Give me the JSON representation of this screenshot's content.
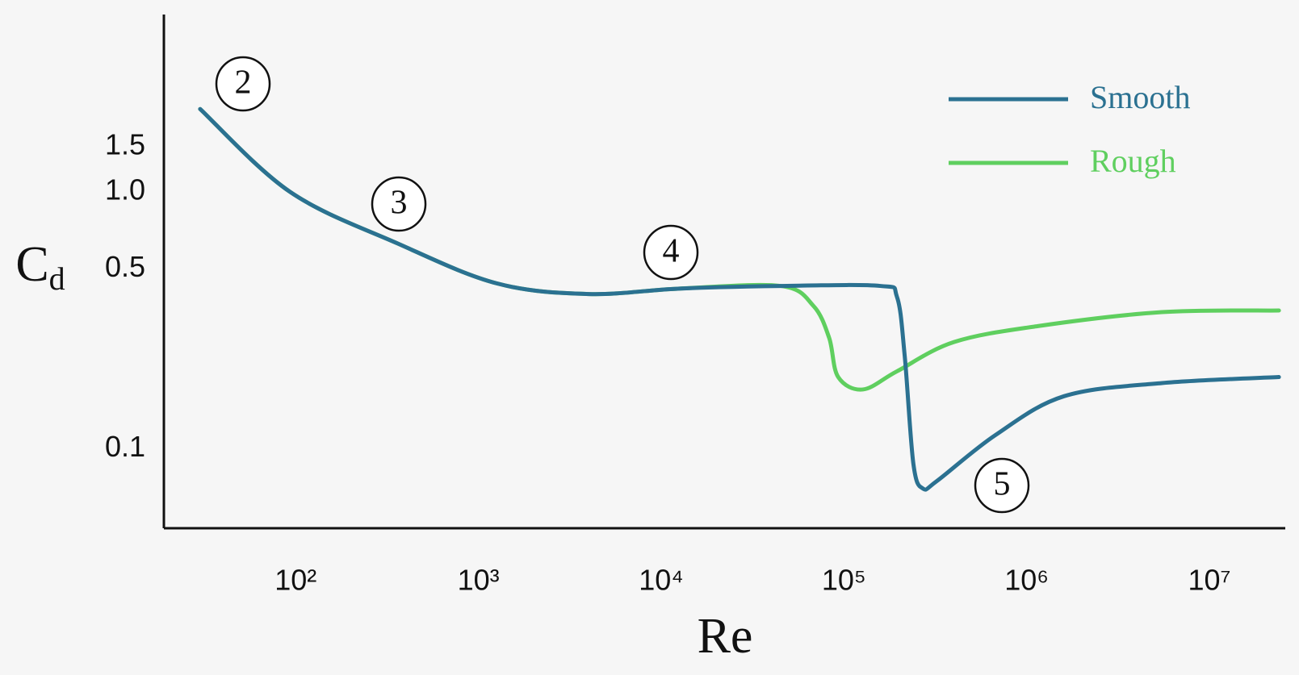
{
  "chart_data": {
    "type": "line",
    "xlabel": "Re",
    "ylabel": "Cd",
    "xscale": "log",
    "yscale": "log",
    "grid": false,
    "legend": "upper right",
    "xlim": [
      19,
      26000000
    ],
    "ylim": [
      0.049,
      4.9
    ],
    "xticks": [
      {
        "value": 100,
        "label": "10²"
      },
      {
        "value": 1000,
        "label": "10³"
      },
      {
        "value": 10000,
        "label": "10⁴"
      },
      {
        "value": 100000,
        "label": "10⁵"
      },
      {
        "value": 1000000,
        "label": "10⁶"
      },
      {
        "value": 10000000,
        "label": "10⁷"
      }
    ],
    "yticks": [
      1.5,
      {
        "value": 1,
        "label": "1.0"
      },
      0.5,
      0.1
    ],
    "annotations": [
      "2",
      "3",
      "4",
      "5"
    ],
    "series": [
      {
        "name": "Smooth",
        "color": "#2b7191",
        "x": [
          30,
          93,
          360,
          1260,
          4000,
          12600,
          45000,
          158000,
          195000,
          215000,
          240000,
          270000,
          324000,
          675000,
          1600000,
          5500000,
          24000000
        ],
        "values": [
          2.1,
          1.0,
          0.63,
          0.44,
          0.4,
          0.42,
          0.43,
          0.43,
          0.39,
          0.23,
          0.087,
          0.07,
          0.075,
          0.113,
          0.16,
          0.18,
          0.19
        ]
      },
      {
        "name": "Rough",
        "color": "#5fcf5f",
        "x": [
          30,
          93,
          360,
          1260,
          4000,
          12600,
          45000,
          68000,
          83000,
          93000,
          127000,
          195000,
          400000,
          1150000,
          5500000,
          24000000
        ],
        "values": [
          2.1,
          1.0,
          0.63,
          0.44,
          0.4,
          0.42,
          0.43,
          0.36,
          0.27,
          0.19,
          0.17,
          0.2,
          0.26,
          0.3,
          0.34,
          0.345
        ]
      }
    ]
  }
}
